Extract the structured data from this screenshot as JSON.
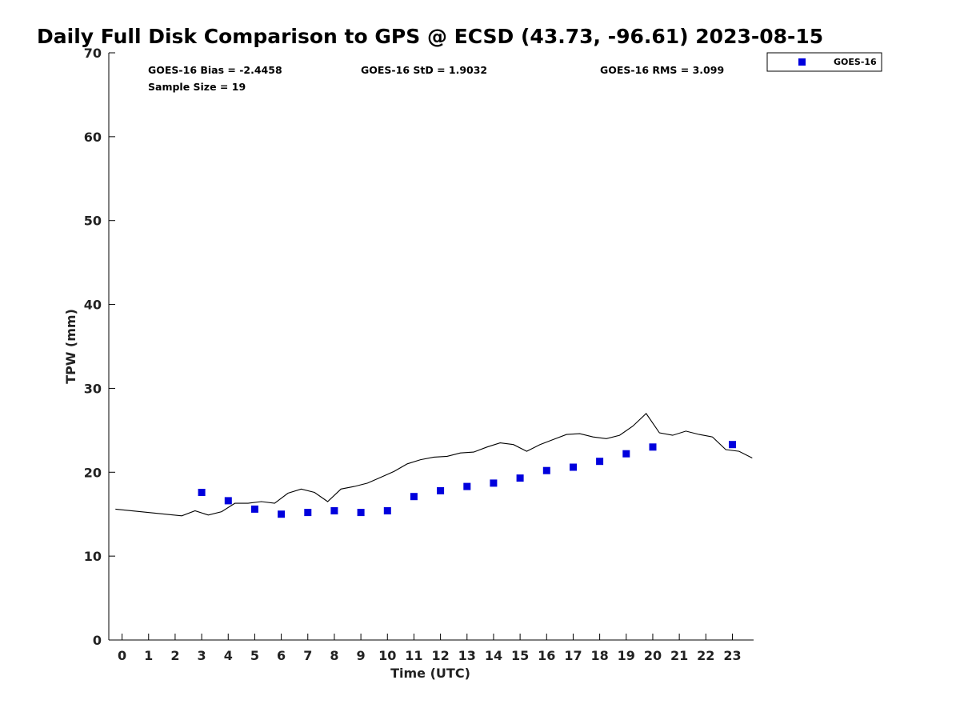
{
  "chart_data": {
    "type": "scatter",
    "title": "Daily Full Disk Comparison to GPS @ ECSD (43.73, -96.61) 2023-08-15",
    "xlabel": "Time (UTC)",
    "ylabel": "TPW (mm)",
    "xlim": [
      -0.5,
      23.8
    ],
    "ylim": [
      0,
      70
    ],
    "x_ticks": [
      0,
      1,
      2,
      3,
      4,
      5,
      6,
      7,
      8,
      9,
      10,
      11,
      12,
      13,
      14,
      15,
      16,
      17,
      18,
      19,
      20,
      21,
      22,
      23
    ],
    "y_ticks": [
      0,
      10,
      20,
      30,
      40,
      50,
      60,
      70
    ],
    "grid": false,
    "legend_position": "top-right",
    "stats": {
      "bias": "GOES-16 Bias = -2.4458",
      "std": "GOES-16 StD = 1.9032",
      "rms": "GOES-16 RMS = 3.099",
      "sample_size": "Sample Size = 19"
    },
    "series": [
      {
        "name": "GOES-16",
        "kind": "scatter",
        "color": "#0000dd",
        "marker": "square",
        "x": [
          3,
          4,
          5,
          6,
          7,
          8,
          9,
          10,
          11,
          12,
          13,
          14,
          15,
          16,
          17,
          18,
          19,
          20,
          23
        ],
        "y": [
          17.6,
          16.6,
          15.6,
          15.0,
          15.2,
          15.4,
          15.2,
          15.4,
          17.1,
          17.8,
          18.3,
          18.7,
          19.3,
          20.2,
          20.6,
          21.3,
          22.2,
          23.0,
          23.3
        ]
      },
      {
        "kind": "line",
        "color": "#000000",
        "x": [
          -0.25,
          2.25,
          2.75,
          3.25,
          3.75,
          4.25,
          4.75,
          5.25,
          5.75,
          6.25,
          6.75,
          7.25,
          7.75,
          8.25,
          8.75,
          9.25,
          9.75,
          10.25,
          10.75,
          11.25,
          11.75,
          12.25,
          12.75,
          13.25,
          13.75,
          14.25,
          14.75,
          15.25,
          15.75,
          16.25,
          16.75,
          17.25,
          17.75,
          18.25,
          18.75,
          19.25,
          19.75,
          20.25,
          20.75,
          21.25,
          21.75,
          22.25,
          22.75,
          23.25,
          23.75
        ],
        "y": [
          15.6,
          14.8,
          15.4,
          14.9,
          15.3,
          16.3,
          16.3,
          16.5,
          16.3,
          17.5,
          18.0,
          17.6,
          16.5,
          18.0,
          18.3,
          18.7,
          19.4,
          20.1,
          21.0,
          21.5,
          21.8,
          21.9,
          22.3,
          22.4,
          23.0,
          23.5,
          23.3,
          22.5,
          23.3,
          23.9,
          24.5,
          24.6,
          24.2,
          24.0,
          24.4,
          25.5,
          27.0,
          24.7,
          24.4,
          24.9,
          24.5,
          24.2,
          22.7,
          22.5,
          21.7
        ]
      }
    ]
  }
}
